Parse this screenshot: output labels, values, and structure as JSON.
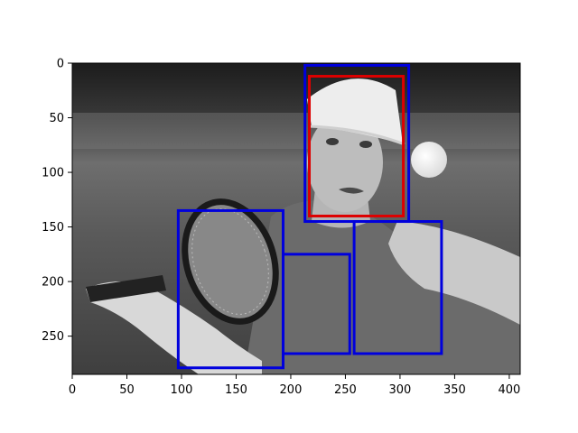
{
  "figure": {
    "image_extent": {
      "x": [
        0,
        410
      ],
      "y": [
        0,
        285
      ]
    },
    "x_ticks": [
      {
        "value": 0,
        "label": "0"
      },
      {
        "value": 50,
        "label": "50"
      },
      {
        "value": 100,
        "label": "100"
      },
      {
        "value": 150,
        "label": "150"
      },
      {
        "value": 200,
        "label": "200"
      },
      {
        "value": 250,
        "label": "250"
      },
      {
        "value": 300,
        "label": "300"
      },
      {
        "value": 350,
        "label": "350"
      },
      {
        "value": 400,
        "label": "400"
      }
    ],
    "y_ticks": [
      {
        "value": 0,
        "label": "0"
      },
      {
        "value": 50,
        "label": "50"
      },
      {
        "value": 100,
        "label": "100"
      },
      {
        "value": 150,
        "label": "150"
      },
      {
        "value": 200,
        "label": "200"
      },
      {
        "value": 250,
        "label": "250"
      }
    ],
    "boxes": [
      {
        "name": "head-box",
        "color": "#0000dd",
        "x0": 213,
        "y0": 2,
        "x1": 308,
        "y1": 145
      },
      {
        "name": "face-box",
        "color": "#dd0000",
        "x0": 217,
        "y0": 12,
        "x1": 303,
        "y1": 140
      },
      {
        "name": "racket-arm-box",
        "color": "#0000dd",
        "x0": 97,
        "y0": 135,
        "x1": 193,
        "y1": 279
      },
      {
        "name": "torso-center-box",
        "color": "#0000dd",
        "x0": 193,
        "y0": 175,
        "x1": 254,
        "y1": 266
      },
      {
        "name": "torso-right-box",
        "color": "#0000dd",
        "x0": 258,
        "y0": 145,
        "x1": 338,
        "y1": 266
      }
    ]
  }
}
